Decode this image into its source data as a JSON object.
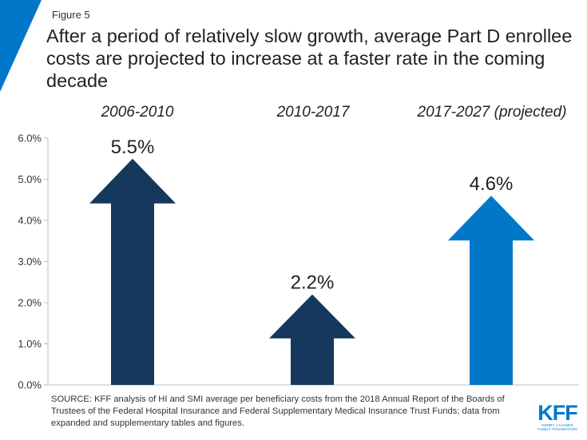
{
  "figure_label": "Figure 5",
  "title": "After a period of relatively slow growth, average Part D enrollee costs are projected to increase at a faster rate in the coming decade",
  "source": "SOURCE: KFF analysis of HI and SMI average per beneficiary costs from the 2018 Annual Report of the Boards of Trustees of the Federal Hospital Insurance and Federal Supplementary Medical Insurance Trust Funds; data from expanded and supplementary tables and figures.",
  "logo": {
    "text": "KFF",
    "subtitle": "HENRY J KAISER FAMILY FOUNDATION"
  },
  "colors": {
    "accent": "#0077c8",
    "dark_arrow": "#15385c",
    "projected_arrow": "#0077c8",
    "axis": "#bfbfbf"
  },
  "chart_data": {
    "type": "bar",
    "categories": [
      "2006-2010",
      "2010-2017",
      "2017-2027 (projected)"
    ],
    "values": [
      5.5,
      2.2,
      4.6
    ],
    "data_labels": [
      "5.5%",
      "2.2%",
      "4.6%"
    ],
    "bar_colors": [
      "#15385c",
      "#15385c",
      "#0077c8"
    ],
    "ylim": [
      0,
      6
    ],
    "yticks": [
      0,
      1,
      2,
      3,
      4,
      5,
      6
    ],
    "ytick_labels": [
      "0.0%",
      "1.0%",
      "2.0%",
      "3.0%",
      "4.0%",
      "5.0%",
      "6.0%"
    ],
    "xlabel": "",
    "ylabel": "",
    "grid": false,
    "mark_shape": "arrow"
  }
}
